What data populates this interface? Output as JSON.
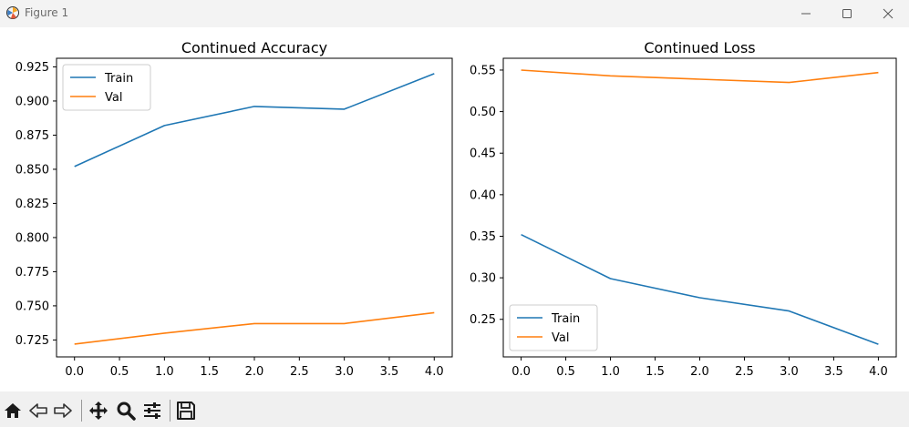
{
  "window": {
    "title": "Figure 1",
    "icons": [
      "app-icon",
      "minimize-icon",
      "maximize-icon",
      "close-icon"
    ]
  },
  "toolbar": {
    "buttons": [
      {
        "name": "home",
        "icon": "home-icon"
      },
      {
        "name": "back",
        "icon": "back-arrow-icon"
      },
      {
        "name": "forward",
        "icon": "forward-arrow-icon"
      },
      {
        "name": "pan",
        "icon": "move-icon"
      },
      {
        "name": "zoom",
        "icon": "magnifier-icon"
      },
      {
        "name": "configure-subplots",
        "icon": "sliders-icon"
      },
      {
        "name": "save",
        "icon": "save-icon"
      }
    ]
  },
  "colors": {
    "train": "#1f77b4",
    "val": "#ff7f0e",
    "axes": "#000000"
  },
  "chart_data": [
    {
      "type": "line",
      "title": "Continued Accuracy",
      "xlabel": "",
      "ylabel": "",
      "x": [
        0,
        1,
        2,
        3,
        4
      ],
      "xticks": [
        "0.0",
        "0.5",
        "1.0",
        "1.5",
        "2.0",
        "2.5",
        "3.0",
        "3.5",
        "4.0"
      ],
      "yticks": [
        "0.725",
        "0.750",
        "0.775",
        "0.800",
        "0.825",
        "0.850",
        "0.875",
        "0.900",
        "0.925"
      ],
      "xlim": [
        -0.2,
        4.2
      ],
      "ylim": [
        0.7126,
        0.9313
      ],
      "grid": false,
      "legend": "upper left",
      "series": [
        {
          "name": "Train",
          "values": [
            0.852,
            0.882,
            0.896,
            0.894,
            0.92
          ]
        },
        {
          "name": "Val",
          "values": [
            0.722,
            0.73,
            0.737,
            0.737,
            0.745
          ]
        }
      ]
    },
    {
      "type": "line",
      "title": "Continued Loss",
      "xlabel": "",
      "ylabel": "",
      "x": [
        0,
        1,
        2,
        3,
        4
      ],
      "xticks": [
        "0.0",
        "0.5",
        "1.0",
        "1.5",
        "2.0",
        "2.5",
        "3.0",
        "3.5",
        "4.0"
      ],
      "yticks": [
        "0.25",
        "0.30",
        "0.35",
        "0.40",
        "0.45",
        "0.50",
        "0.55"
      ],
      "xlim": [
        -0.2,
        4.2
      ],
      "ylim": [
        0.2048,
        0.5642
      ],
      "grid": false,
      "legend": "lower left",
      "series": [
        {
          "name": "Train",
          "values": [
            0.352,
            0.299,
            0.276,
            0.26,
            0.22
          ]
        },
        {
          "name": "Val",
          "values": [
            0.55,
            0.543,
            0.539,
            0.535,
            0.547
          ]
        }
      ]
    }
  ]
}
